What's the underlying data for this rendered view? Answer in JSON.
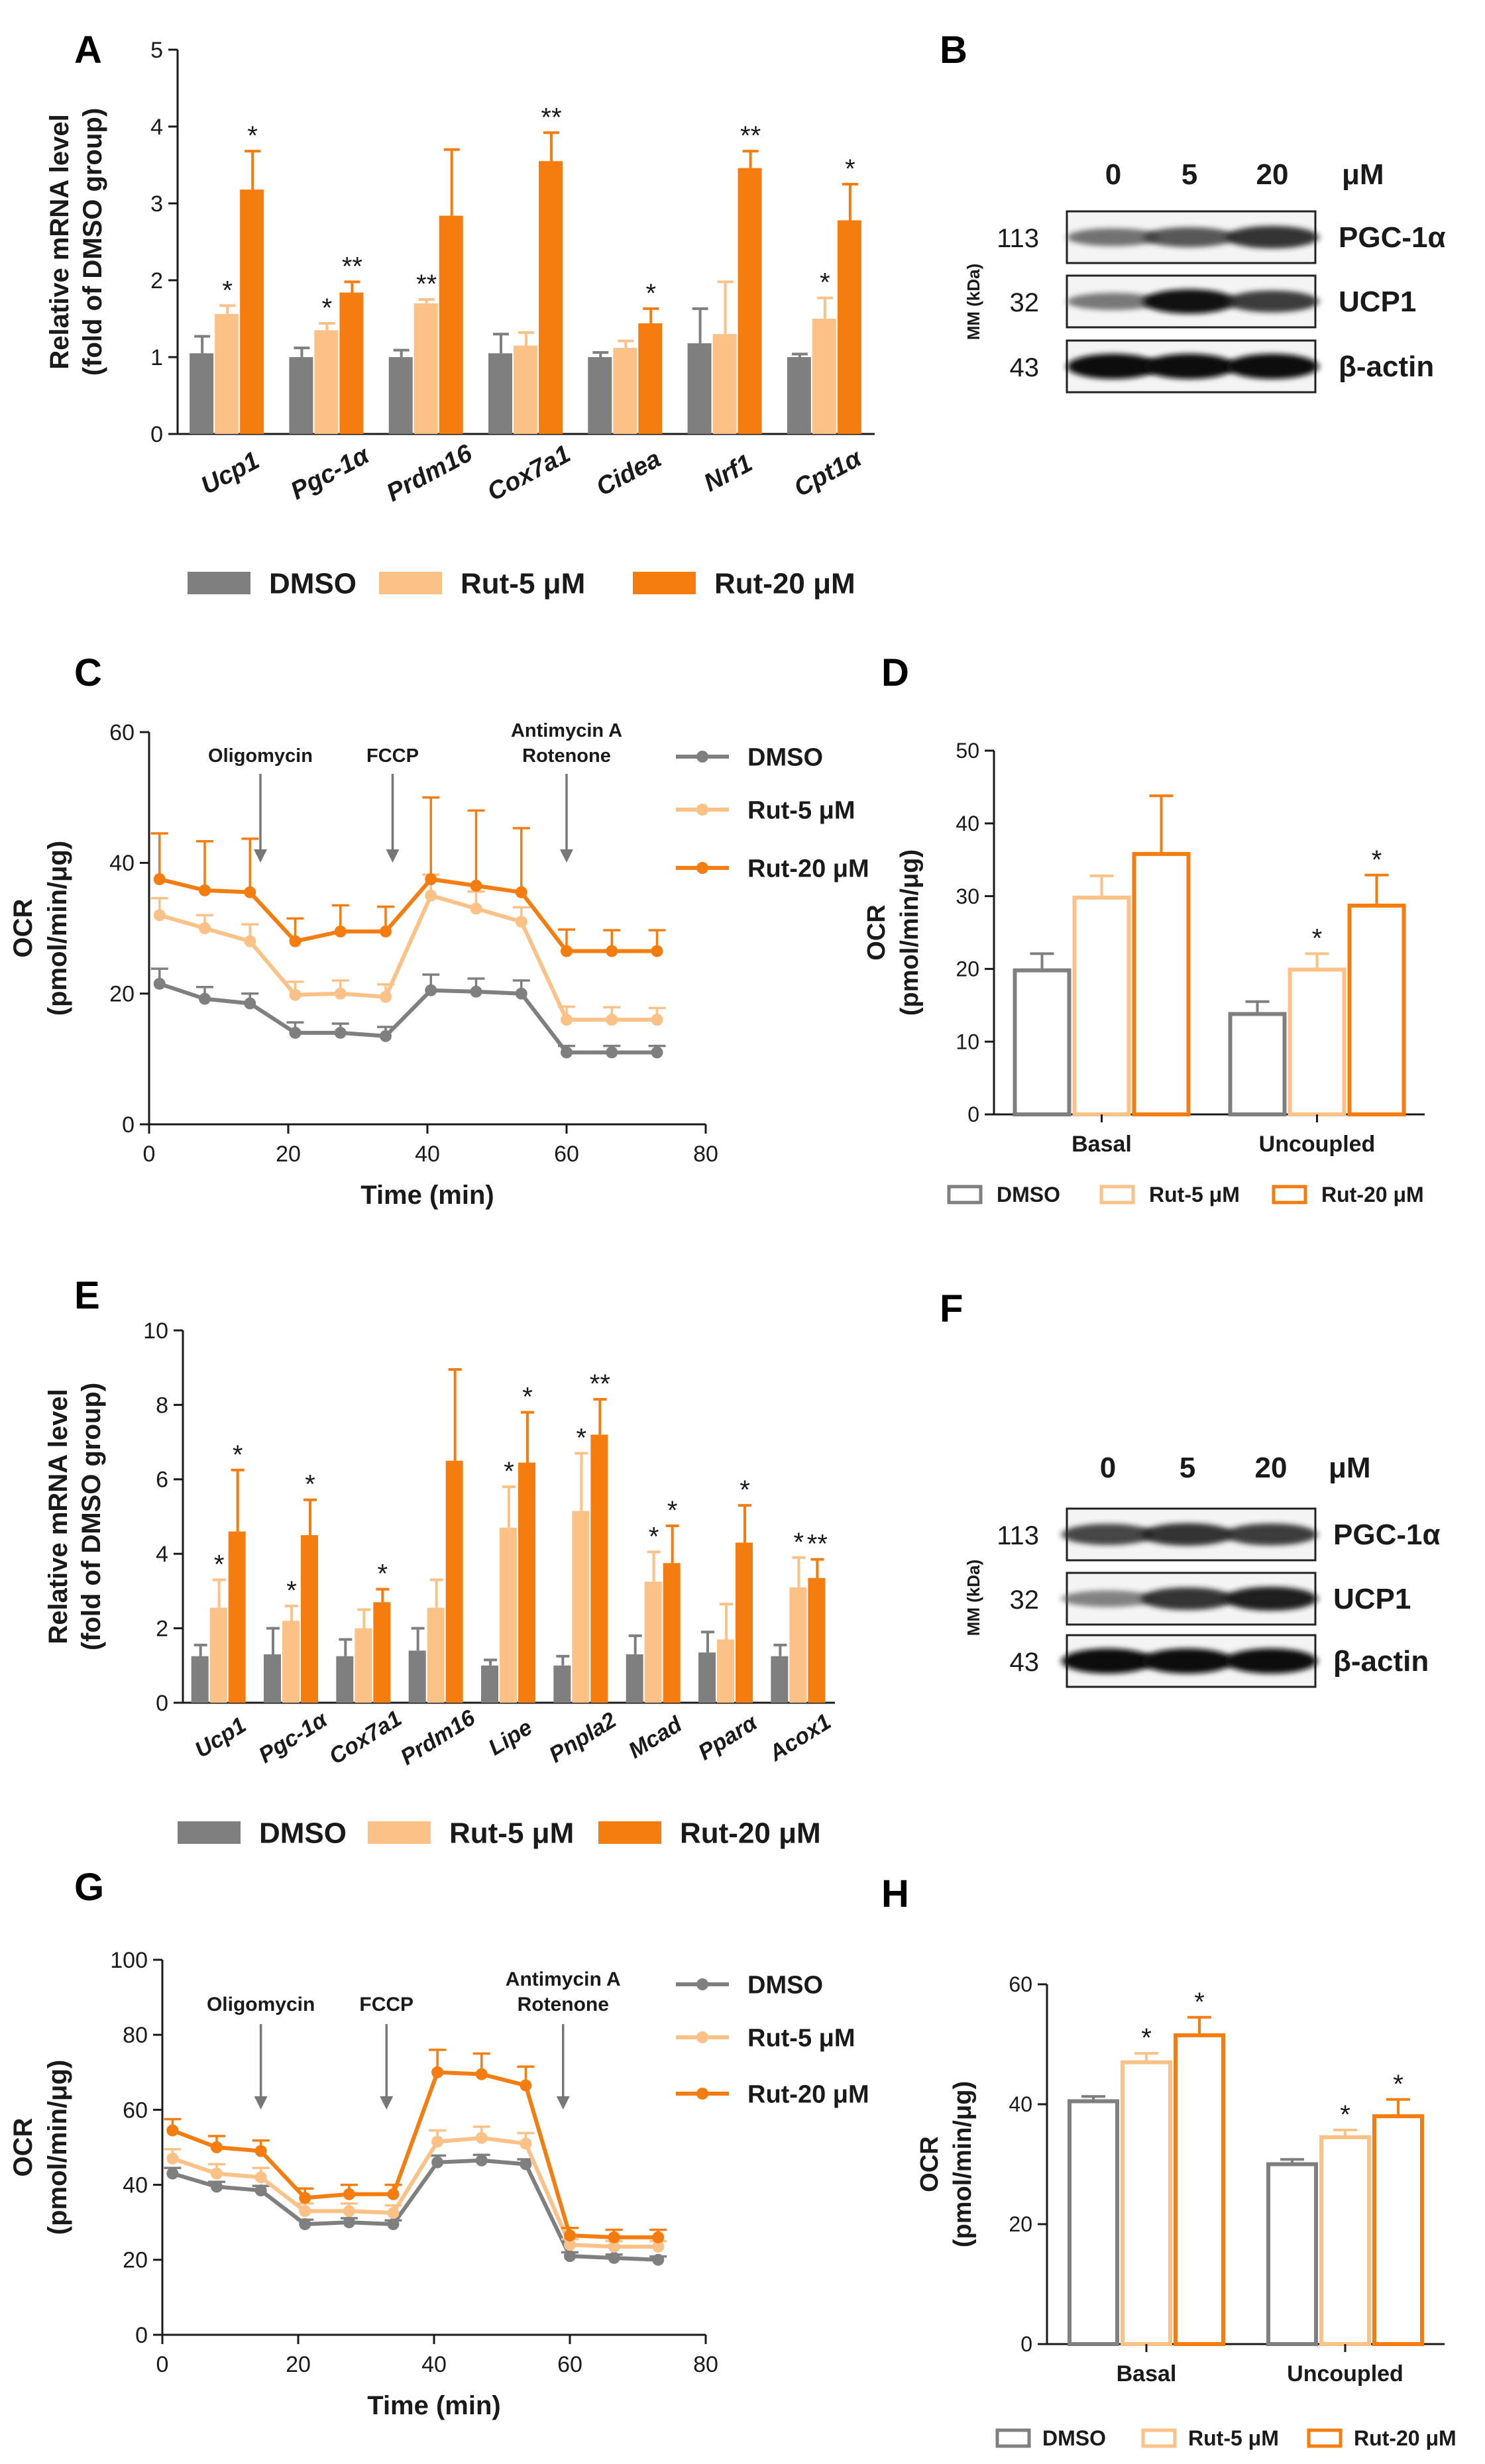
{
  "figure": "Rutaecarpine (Rut) thermogenic gene / protein / OCR figure",
  "colors": {
    "dmso": "#7f7f7f",
    "rut5": "#fbc187",
    "rut20": "#f57c0f",
    "axis": "#1a1a1a",
    "star": "#1a1a1a"
  },
  "panel_letters": [
    "A",
    "B",
    "C",
    "D",
    "E",
    "F",
    "G",
    "H"
  ],
  "legend_labels": [
    "DMSO",
    "Rut-5 μM",
    "Rut-20 μM"
  ],
  "chart_data": [
    {
      "id": "A",
      "type": "bar",
      "title": "",
      "ylabel": "Relative mRNA level (fold of DMSO group)",
      "ylabel_lines": [
        "Relative mRNA level",
        "(fold of DMSO group)"
      ],
      "ylim": [
        0,
        5
      ],
      "yticks": [
        0,
        1,
        2,
        3,
        4,
        5
      ],
      "categories": [
        "Ucp1",
        "Pgc-1α",
        "Prdm16",
        "Cox7a1",
        "Cidea",
        "Nrf1",
        "Cpt1α"
      ],
      "series": [
        {
          "name": "DMSO",
          "values": [
            1.05,
            1.0,
            1.0,
            1.05,
            1.0,
            1.18,
            1.0
          ],
          "errors": [
            0.22,
            0.12,
            0.09,
            0.25,
            0.06,
            0.45,
            0.04
          ]
        },
        {
          "name": "Rut-5 μM",
          "values": [
            1.56,
            1.35,
            1.7,
            1.15,
            1.12,
            1.3,
            1.5
          ],
          "errors": [
            0.11,
            0.09,
            0.05,
            0.17,
            0.09,
            0.68,
            0.27
          ]
        },
        {
          "name": "Rut-20 μM",
          "values": [
            3.18,
            1.84,
            2.84,
            3.55,
            1.44,
            3.46,
            2.78
          ],
          "errors": [
            0.5,
            0.14,
            0.86,
            0.37,
            0.19,
            0.22,
            0.47
          ]
        }
      ],
      "significance": [
        [
          "",
          "*",
          "*"
        ],
        [
          "",
          "*",
          "**"
        ],
        [
          "",
          "**",
          ""
        ],
        [
          "",
          "",
          "**"
        ],
        [
          "",
          "",
          "*"
        ],
        [
          "",
          "",
          "**"
        ],
        [
          "",
          "*",
          "*"
        ]
      ],
      "legend": [
        "DMSO",
        "Rut-5 μM",
        "Rut-20 μM"
      ]
    },
    {
      "id": "C",
      "type": "line",
      "xlabel": "Time (min)",
      "ylabel": "OCR (pmol/min/μg)",
      "ylabel_lines": [
        "OCR",
        "(pmol/min/μg)"
      ],
      "xlim": [
        0,
        80
      ],
      "ylim": [
        0,
        60
      ],
      "xticks": [
        0,
        20,
        40,
        60,
        80
      ],
      "yticks": [
        0,
        20,
        40,
        60
      ],
      "x": [
        1.5,
        8,
        14.5,
        21,
        27.5,
        34,
        40.5,
        47,
        53.5,
        60,
        66.5,
        73
      ],
      "series": [
        {
          "name": "DMSO",
          "values": [
            21.5,
            19.2,
            18.5,
            14,
            14,
            13.5,
            20.5,
            20.3,
            20,
            11,
            11,
            11
          ],
          "errors": [
            2.3,
            1.8,
            1.5,
            1.6,
            1.4,
            1.4,
            2.4,
            2.0,
            2.0,
            1.0,
            1.0,
            1.0
          ]
        },
        {
          "name": "Rut-5 μM",
          "values": [
            32,
            30,
            28,
            19.8,
            20,
            19.5,
            35,
            33,
            31,
            16,
            16,
            16
          ],
          "errors": [
            2.6,
            2.0,
            2.6,
            2.0,
            2.0,
            1.9,
            3.2,
            2.6,
            2.2,
            2.0,
            1.9,
            1.8
          ]
        },
        {
          "name": "Rut-20 μM",
          "values": [
            37.5,
            35.8,
            35.5,
            28,
            29.5,
            29.5,
            37.5,
            36.5,
            35.5,
            26.5,
            26.5,
            26.5
          ],
          "errors": [
            7,
            7.5,
            8.2,
            3.5,
            4.0,
            3.8,
            12.5,
            11.5,
            9.8,
            3.3,
            3.2,
            3.2
          ]
        }
      ],
      "annotations": [
        {
          "label": "Oligomycin",
          "x": 16
        },
        {
          "label": "FCCP",
          "x": 35
        },
        {
          "label_lines": [
            "Antimycin A",
            "Rotenone"
          ],
          "x": 60
        }
      ],
      "legend": [
        "DMSO",
        "Rut-5 μM",
        "Rut-20 μM"
      ]
    },
    {
      "id": "D",
      "type": "bar",
      "ylabel": "OCR (pmol/min/μg)",
      "ylabel_lines": [
        "OCR",
        "(pmol/min/μg)"
      ],
      "ylim": [
        0,
        50
      ],
      "yticks": [
        0,
        10,
        20,
        30,
        40,
        50
      ],
      "categories": [
        "Basal",
        "Uncoupled"
      ],
      "series": [
        {
          "name": "DMSO",
          "values": [
            19.8,
            13.8
          ],
          "errors": [
            2.3,
            1.7
          ]
        },
        {
          "name": "Rut-5 μM",
          "values": [
            29.8,
            19.9
          ],
          "errors": [
            3.0,
            2.2
          ]
        },
        {
          "name": "Rut-20 μM",
          "values": [
            35.8,
            28.7
          ],
          "errors": [
            8.0,
            4.2
          ]
        }
      ],
      "significance": [
        [
          "",
          "",
          ""
        ],
        [
          "",
          "*",
          "*"
        ]
      ],
      "legend": [
        "DMSO",
        "Rut-5 μM",
        "Rut-20 μM"
      ]
    },
    {
      "id": "E",
      "type": "bar",
      "ylabel": "Relative mRNA level (fold of DMSO group)",
      "ylabel_lines": [
        "Relative mRNA level",
        "(fold of DMSO group)"
      ],
      "ylim": [
        0,
        10
      ],
      "yticks": [
        0,
        2,
        4,
        6,
        8,
        10
      ],
      "categories": [
        "Ucp1",
        "Pgc-1α",
        "Cox7a1",
        "Prdm16",
        "Lipe",
        "Pnpla2",
        "Mcad",
        "Pparα",
        "Acox1"
      ],
      "series": [
        {
          "name": "DMSO",
          "values": [
            1.25,
            1.3,
            1.25,
            1.4,
            1.0,
            1.0,
            1.3,
            1.35,
            1.25
          ],
          "errors": [
            0.3,
            0.7,
            0.45,
            0.6,
            0.15,
            0.25,
            0.5,
            0.55,
            0.3
          ]
        },
        {
          "name": "Rut-5 μM",
          "values": [
            2.55,
            2.2,
            2.0,
            2.55,
            4.7,
            5.15,
            3.25,
            1.7,
            3.1
          ]
        },
        {
          "name": "Rut-20 μM",
          "values": [
            4.6,
            4.5,
            2.7,
            6.5,
            6.45,
            7.2,
            3.75,
            4.3,
            3.35
          ]
        }
      ],
      "errors_rut5": [
        0.75,
        0.4,
        0.5,
        0.75,
        1.1,
        1.55,
        0.8,
        0.95,
        0.8
      ],
      "errors_rut20": [
        1.65,
        0.95,
        0.35,
        2.45,
        1.35,
        0.95,
        1.0,
        1.0,
        0.5
      ],
      "significance": [
        [
          "",
          "*",
          "*"
        ],
        [
          "",
          "*",
          "*"
        ],
        [
          "",
          "",
          "*"
        ],
        [
          "",
          "",
          ""
        ],
        [
          "",
          "*",
          "*"
        ],
        [
          "",
          "*",
          "**"
        ],
        [
          "",
          "*",
          "*"
        ],
        [
          "",
          "",
          "*"
        ],
        [
          "",
          "*",
          "**"
        ]
      ],
      "legend": [
        "DMSO",
        "Rut-5 μM",
        "Rut-20 μM"
      ]
    },
    {
      "id": "G",
      "type": "line",
      "xlabel": "Time (min)",
      "ylabel": "OCR (pmol/min/μg)",
      "ylabel_lines": [
        "OCR",
        "(pmol/min/μg)"
      ],
      "xlim": [
        0,
        80
      ],
      "ylim": [
        0,
        100
      ],
      "xticks": [
        0,
        20,
        40,
        60,
        80
      ],
      "yticks": [
        0,
        20,
        40,
        60,
        80,
        100
      ],
      "x": [
        1.5,
        8,
        14.5,
        21,
        27.5,
        34,
        40.5,
        47,
        53.5,
        60,
        66.5,
        73
      ],
      "series": [
        {
          "name": "DMSO",
          "values": [
            43,
            39.5,
            38.5,
            29.5,
            30,
            29.5,
            46,
            46.5,
            45.5,
            21,
            20.5,
            20
          ],
          "errors": [
            1.5,
            1.3,
            1.2,
            1.2,
            1.1,
            1.0,
            1.8,
            1.5,
            1.3,
            1.0,
            0.9,
            0.9
          ]
        },
        {
          "name": "Rut-5 μM",
          "values": [
            47,
            43,
            42,
            33,
            33,
            32.5,
            51.5,
            52.5,
            51,
            24,
            23.5,
            23.5
          ],
          "errors": [
            2.5,
            2.5,
            2.5,
            2.0,
            2.0,
            2.0,
            3.0,
            3.0,
            2.8,
            1.5,
            1.5,
            1.5
          ]
        },
        {
          "name": "Rut-20 μM",
          "values": [
            54.5,
            50,
            49,
            36.5,
            37.5,
            37.5,
            70,
            69.5,
            66.5,
            26.5,
            26,
            26
          ],
          "errors": [
            3.0,
            3.0,
            2.8,
            2.5,
            2.5,
            2.5,
            6.0,
            5.5,
            5.0,
            2.0,
            2.0,
            2.0
          ]
        }
      ],
      "annotations": [
        {
          "label": "Oligomycin",
          "x": 14.5
        },
        {
          "label": "FCCP",
          "x": 33
        },
        {
          "label_lines": [
            "Antimycin A",
            "Rotenone"
          ],
          "x": 59
        }
      ],
      "legend": [
        "DMSO",
        "Rut-5 μM",
        "Rut-20 μM"
      ]
    },
    {
      "id": "H",
      "type": "bar",
      "ylabel": "OCR (pmol/min/μg)",
      "ylabel_lines": [
        "OCR",
        "(pmol/min/μg)"
      ],
      "ylim": [
        0,
        60
      ],
      "yticks": [
        0,
        20,
        40,
        60
      ],
      "categories": [
        "Basal",
        "Uncoupled"
      ],
      "series": [
        {
          "name": "DMSO",
          "values": [
            40.5,
            30
          ],
          "errors": [
            0.8,
            0.8
          ]
        },
        {
          "name": "Rut-5 μM",
          "values": [
            47,
            34.5
          ],
          "errors": [
            1.5,
            1.2
          ]
        },
        {
          "name": "Rut-20 μM",
          "values": [
            51.5,
            38
          ],
          "errors": [
            3.0,
            2.8
          ]
        }
      ],
      "significance": [
        [
          "",
          "*",
          "*"
        ],
        [
          "",
          "*",
          "*"
        ]
      ],
      "legend": [
        "DMSO",
        "Rut-5 μM",
        "Rut-20 μM"
      ]
    }
  ],
  "blots": [
    {
      "id": "B",
      "doses": [
        "0",
        "5",
        "20"
      ],
      "unit": "μM",
      "mw_axis_label": "MM (kDa)",
      "bands": [
        {
          "mw": "113",
          "protein": "PGC-1α",
          "intensity": [
            0.45,
            0.6,
            0.8
          ]
        },
        {
          "mw": "32",
          "protein": "UCP1",
          "intensity": [
            0.4,
            0.95,
            0.75
          ]
        },
        {
          "mw": "43",
          "protein": "β-actin",
          "intensity": [
            1.0,
            1.0,
            1.0
          ]
        }
      ]
    },
    {
      "id": "F",
      "doses": [
        "0",
        "5",
        "20"
      ],
      "unit": "μM",
      "mw_axis_label": "MM (kDa)",
      "bands": [
        {
          "mw": "113",
          "protein": "PGC-1α",
          "intensity": [
            0.7,
            0.8,
            0.75
          ]
        },
        {
          "mw": "32",
          "protein": "UCP1",
          "intensity": [
            0.35,
            0.8,
            0.9
          ]
        },
        {
          "mw": "43",
          "protein": "β-actin",
          "intensity": [
            1.0,
            1.0,
            1.0
          ]
        }
      ]
    }
  ]
}
